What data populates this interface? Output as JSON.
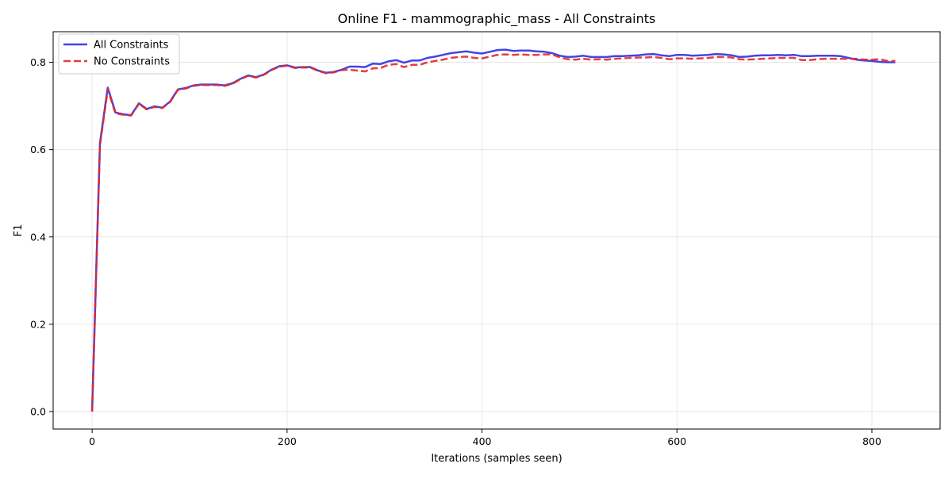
{
  "chart_data": {
    "type": "line",
    "title": "Online F1 - mammographic_mass - All Constraints",
    "xlabel": "Iterations (samples seen)",
    "ylabel": "F1",
    "xlim": [
      -40,
      870
    ],
    "ylim": [
      -0.04,
      0.87
    ],
    "xticks": [
      0,
      200,
      400,
      600,
      800
    ],
    "xtick_labels": [
      "0",
      "200",
      "400",
      "600",
      "800"
    ],
    "yticks": [
      0.0,
      0.2,
      0.4,
      0.6,
      0.8
    ],
    "ytick_labels": [
      "0.0",
      "0.2",
      "0.4",
      "0.6",
      "0.8"
    ],
    "grid": true,
    "legend_position": "top-left",
    "series": [
      {
        "name": "All Constraints",
        "color": "#2f2fe6",
        "style": "solid",
        "x": [
          0,
          8,
          16,
          24,
          32,
          40,
          48,
          56,
          64,
          72,
          80,
          88,
          96,
          104,
          112,
          120,
          128,
          136,
          144,
          152,
          160,
          168,
          176,
          184,
          192,
          200,
          208,
          216,
          224,
          232,
          240,
          248,
          256,
          264,
          272,
          280,
          288,
          296,
          304,
          312,
          320,
          328,
          336,
          344,
          352,
          360,
          368,
          376,
          384,
          392,
          400,
          408,
          416,
          424,
          432,
          440,
          448,
          456,
          464,
          472,
          480,
          488,
          496,
          504,
          512,
          520,
          528,
          536,
          544,
          552,
          560,
          568,
          576,
          584,
          592,
          600,
          608,
          616,
          624,
          632,
          640,
          648,
          656,
          664,
          672,
          680,
          688,
          696,
          704,
          712,
          720,
          728,
          736,
          744,
          752,
          760,
          768,
          776,
          784,
          792,
          800,
          808,
          816,
          824
        ],
        "values": [
          0.0,
          0.615,
          0.742,
          0.685,
          0.681,
          0.679,
          0.706,
          0.693,
          0.699,
          0.696,
          0.71,
          0.738,
          0.741,
          0.747,
          0.749,
          0.749,
          0.749,
          0.747,
          0.752,
          0.762,
          0.77,
          0.766,
          0.772,
          0.783,
          0.791,
          0.793,
          0.788,
          0.789,
          0.789,
          0.781,
          0.776,
          0.778,
          0.783,
          0.79,
          0.79,
          0.789,
          0.797,
          0.796,
          0.802,
          0.805,
          0.799,
          0.804,
          0.804,
          0.81,
          0.813,
          0.817,
          0.821,
          0.823,
          0.825,
          0.822,
          0.82,
          0.824,
          0.828,
          0.829,
          0.826,
          0.827,
          0.827,
          0.825,
          0.824,
          0.821,
          0.815,
          0.812,
          0.813,
          0.815,
          0.812,
          0.812,
          0.812,
          0.814,
          0.814,
          0.815,
          0.816,
          0.818,
          0.819,
          0.816,
          0.814,
          0.817,
          0.817,
          0.815,
          0.816,
          0.817,
          0.819,
          0.818,
          0.816,
          0.812,
          0.813,
          0.815,
          0.816,
          0.816,
          0.817,
          0.816,
          0.817,
          0.814,
          0.814,
          0.815,
          0.815,
          0.815,
          0.814,
          0.81,
          0.806,
          0.804,
          0.803,
          0.801,
          0.8,
          0.8
        ]
      },
      {
        "name": "No Constraints",
        "color": "#e62828",
        "style": "dashed",
        "x": [
          0,
          8,
          16,
          24,
          32,
          40,
          48,
          56,
          64,
          72,
          80,
          88,
          96,
          104,
          112,
          120,
          128,
          136,
          144,
          152,
          160,
          168,
          176,
          184,
          192,
          200,
          208,
          216,
          224,
          232,
          240,
          248,
          256,
          264,
          272,
          280,
          288,
          296,
          304,
          312,
          320,
          328,
          336,
          344,
          352,
          360,
          368,
          376,
          384,
          392,
          400,
          408,
          416,
          424,
          432,
          440,
          448,
          456,
          464,
          472,
          480,
          488,
          496,
          504,
          512,
          520,
          528,
          536,
          544,
          552,
          560,
          568,
          576,
          584,
          592,
          600,
          608,
          616,
          624,
          632,
          640,
          648,
          656,
          664,
          672,
          680,
          688,
          696,
          704,
          712,
          720,
          728,
          736,
          744,
          752,
          760,
          768,
          776,
          784,
          792,
          800,
          808,
          816,
          824
        ],
        "values": [
          0.0,
          0.61,
          0.738,
          0.683,
          0.68,
          0.678,
          0.705,
          0.692,
          0.698,
          0.695,
          0.709,
          0.737,
          0.74,
          0.746,
          0.748,
          0.748,
          0.748,
          0.746,
          0.751,
          0.761,
          0.769,
          0.765,
          0.771,
          0.782,
          0.79,
          0.792,
          0.787,
          0.788,
          0.788,
          0.78,
          0.775,
          0.777,
          0.782,
          0.783,
          0.781,
          0.779,
          0.786,
          0.787,
          0.794,
          0.796,
          0.789,
          0.794,
          0.794,
          0.8,
          0.803,
          0.806,
          0.81,
          0.812,
          0.813,
          0.81,
          0.809,
          0.813,
          0.817,
          0.818,
          0.817,
          0.818,
          0.817,
          0.817,
          0.818,
          0.818,
          0.811,
          0.807,
          0.806,
          0.808,
          0.806,
          0.807,
          0.806,
          0.808,
          0.809,
          0.81,
          0.811,
          0.811,
          0.812,
          0.81,
          0.807,
          0.809,
          0.809,
          0.808,
          0.809,
          0.81,
          0.812,
          0.812,
          0.811,
          0.807,
          0.806,
          0.807,
          0.808,
          0.809,
          0.81,
          0.81,
          0.81,
          0.805,
          0.805,
          0.807,
          0.808,
          0.808,
          0.808,
          0.808,
          0.808,
          0.806,
          0.806,
          0.807,
          0.803,
          0.803
        ]
      }
    ]
  }
}
